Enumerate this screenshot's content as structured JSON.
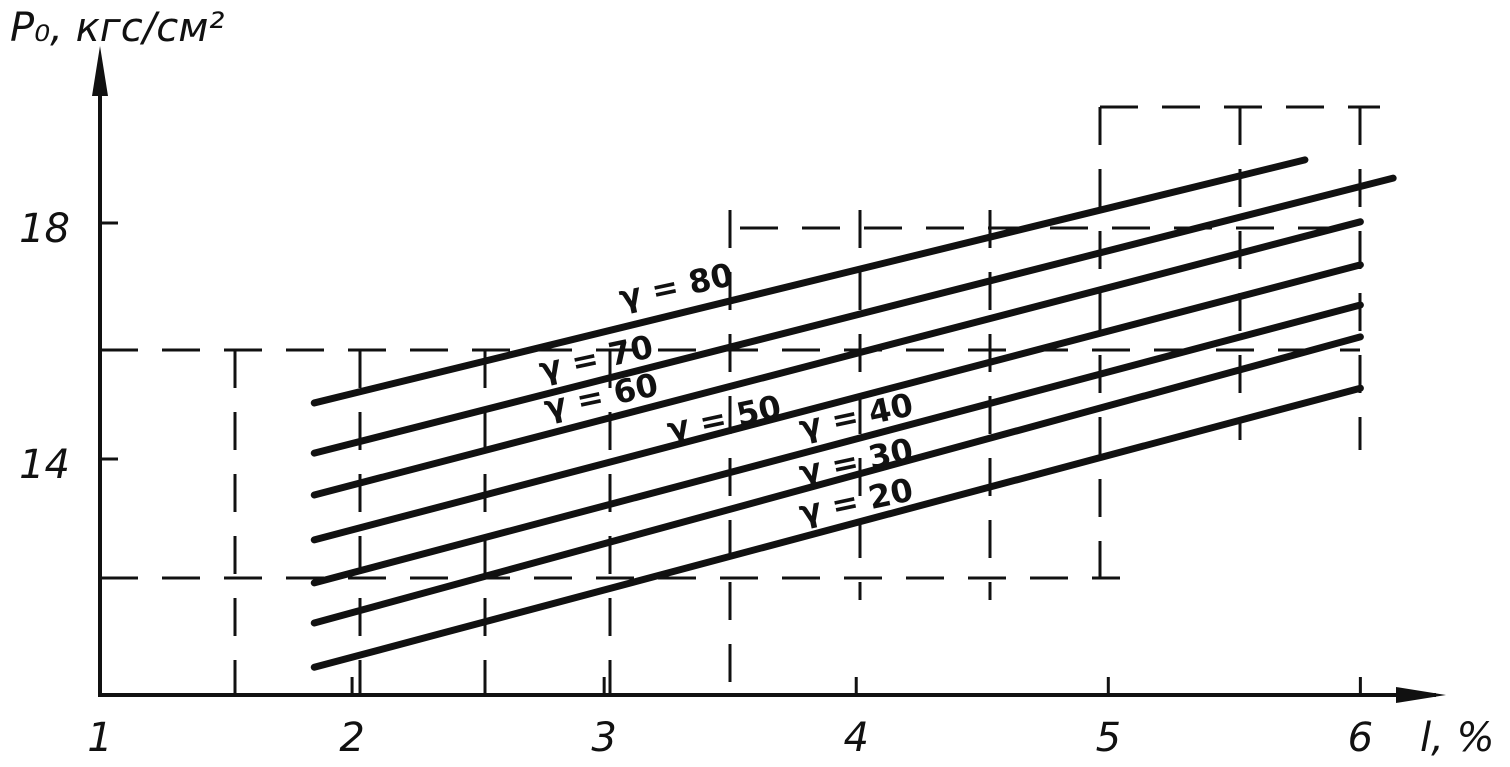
{
  "chart_data": {
    "type": "line",
    "xlabel": "l, %",
    "ylabel": "P₀, кгс/см²",
    "xlim": [
      1,
      6.3
    ],
    "ylim": [
      10,
      21
    ],
    "xticks": [
      1,
      2,
      3,
      4,
      5,
      6
    ],
    "yticks": [
      14,
      18
    ],
    "color": "#111111",
    "series": [
      {
        "name": "γ = 80",
        "x": [
          1.85,
          5.78
        ],
        "values": [
          14.95,
          19.07
        ]
      },
      {
        "name": "γ = 70",
        "x": [
          1.85,
          6.13
        ],
        "values": [
          14.1,
          18.76
        ]
      },
      {
        "name": "γ = 60",
        "x": [
          1.85,
          6.0
        ],
        "values": [
          13.39,
          18.02
        ]
      },
      {
        "name": "γ = 50",
        "x": [
          1.85,
          6.0
        ],
        "values": [
          12.63,
          17.29
        ]
      },
      {
        "name": "γ = 40",
        "x": [
          1.85,
          6.0
        ],
        "values": [
          11.9,
          16.61
        ]
      },
      {
        "name": "γ = 30",
        "x": [
          1.85,
          6.0
        ],
        "values": [
          11.22,
          16.07
        ]
      },
      {
        "name": "γ = 20",
        "x": [
          1.85,
          6.0
        ],
        "values": [
          10.47,
          15.2
        ]
      }
    ]
  }
}
